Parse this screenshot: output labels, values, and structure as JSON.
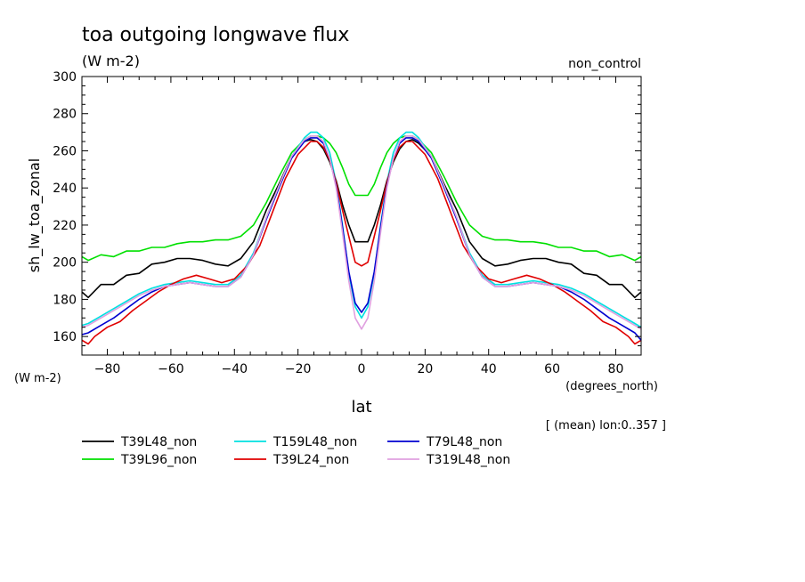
{
  "chart_data": {
    "type": "line",
    "title": "toa outgoing longwave flux",
    "subtitle": "(W m-2)",
    "dataset_label": "non_control",
    "ylabel": "sh_lw_toa_zonal",
    "yunits": "(W m-2)",
    "xlabel": "lat",
    "xunits": "(degrees_north)",
    "note": "[ (mean) lon:0..357 ]",
    "xlim": [
      -88,
      88
    ],
    "ylim": [
      150,
      300
    ],
    "xticks": [
      -80,
      -60,
      -40,
      -20,
      0,
      20,
      40,
      60,
      80
    ],
    "yticks": [
      160,
      180,
      200,
      220,
      240,
      260,
      280,
      300
    ],
    "grid": false,
    "legend_position": "bottom",
    "series": [
      {
        "name": "T39L48_non",
        "color": "#000000",
        "x": [
          -88,
          -86,
          -82,
          -78,
          -74,
          -70,
          -66,
          -62,
          -58,
          -54,
          -50,
          -46,
          -42,
          -38,
          -34,
          -30,
          -26,
          -22,
          -18,
          -16,
          -14,
          -12,
          -10,
          -8,
          -6,
          -4,
          -2,
          0,
          2,
          4,
          6,
          8,
          10,
          12,
          14,
          16,
          18,
          22,
          26,
          30,
          34,
          38,
          42,
          46,
          50,
          54,
          58,
          62,
          66,
          70,
          74,
          78,
          82,
          86,
          88
        ],
        "y": [
          184,
          181,
          188,
          188,
          193,
          194,
          199,
          200,
          202,
          202,
          201,
          199,
          198,
          202,
          211,
          228,
          242,
          257,
          265,
          266,
          265,
          261,
          254,
          244,
          231,
          220,
          211,
          211,
          211,
          220,
          231,
          244,
          254,
          261,
          265,
          266,
          264,
          257,
          242,
          228,
          211,
          202,
          198,
          199,
          201,
          202,
          202,
          200,
          199,
          194,
          193,
          188,
          188,
          181,
          184
        ]
      },
      {
        "name": "T39L96_non",
        "color": "#00e000",
        "x": [
          -88,
          -86,
          -82,
          -78,
          -74,
          -70,
          -66,
          -62,
          -58,
          -54,
          -50,
          -46,
          -42,
          -38,
          -34,
          -30,
          -26,
          -22,
          -18,
          -16,
          -14,
          -12,
          -10,
          -8,
          -6,
          -4,
          -2,
          0,
          2,
          4,
          6,
          8,
          10,
          12,
          14,
          16,
          18,
          22,
          26,
          30,
          34,
          38,
          42,
          46,
          50,
          54,
          58,
          62,
          66,
          70,
          74,
          78,
          82,
          86,
          88
        ],
        "y": [
          203,
          201,
          204,
          203,
          206,
          206,
          208,
          208,
          210,
          211,
          211,
          212,
          212,
          214,
          220,
          232,
          246,
          259,
          266,
          268,
          268,
          267,
          264,
          259,
          251,
          242,
          236,
          236,
          236,
          242,
          251,
          259,
          264,
          267,
          268,
          268,
          266,
          259,
          246,
          232,
          220,
          214,
          212,
          212,
          211,
          211,
          210,
          208,
          208,
          206,
          206,
          203,
          204,
          201,
          203
        ]
      },
      {
        "name": "T159L48_non",
        "color": "#00e0e0",
        "x": [
          -88,
          -86,
          -82,
          -78,
          -74,
          -70,
          -66,
          -62,
          -58,
          -54,
          -50,
          -46,
          -42,
          -38,
          -34,
          -30,
          -26,
          -22,
          -18,
          -16,
          -14,
          -12,
          -10,
          -8,
          -6,
          -4,
          -2,
          0,
          2,
          4,
          6,
          8,
          10,
          12,
          14,
          16,
          18,
          22,
          26,
          30,
          34,
          38,
          42,
          46,
          50,
          54,
          58,
          62,
          66,
          70,
          74,
          78,
          82,
          86,
          88
        ],
        "y": [
          166,
          167,
          171,
          175,
          179,
          183,
          186,
          188,
          189,
          190,
          189,
          188,
          188,
          193,
          205,
          224,
          241,
          257,
          267,
          270,
          270,
          267,
          259,
          243,
          220,
          194,
          176,
          170,
          176,
          194,
          220,
          243,
          259,
          267,
          270,
          270,
          267,
          257,
          241,
          224,
          205,
          193,
          188,
          188,
          189,
          190,
          189,
          188,
          186,
          183,
          179,
          175,
          171,
          167,
          165
        ]
      },
      {
        "name": "T39L24_non",
        "color": "#e00000",
        "x": [
          -88,
          -86,
          -84,
          -80,
          -76,
          -72,
          -68,
          -64,
          -60,
          -56,
          -52,
          -48,
          -44,
          -40,
          -36,
          -32,
          -28,
          -24,
          -20,
          -16,
          -14,
          -12,
          -10,
          -8,
          -6,
          -4,
          -2,
          0,
          2,
          4,
          6,
          8,
          10,
          12,
          14,
          16,
          20,
          24,
          28,
          32,
          36,
          40,
          44,
          48,
          52,
          56,
          60,
          64,
          68,
          72,
          76,
          80,
          84,
          86,
          88
        ],
        "y": [
          158,
          156,
          160,
          165,
          168,
          174,
          179,
          184,
          188,
          191,
          193,
          191,
          189,
          191,
          198,
          209,
          227,
          245,
          258,
          265,
          265,
          262,
          255,
          243,
          228,
          214,
          200,
          198,
          200,
          214,
          228,
          243,
          255,
          262,
          265,
          265,
          258,
          245,
          227,
          209,
          198,
          191,
          189,
          191,
          193,
          191,
          188,
          184,
          179,
          174,
          168,
          165,
          160,
          156,
          158
        ]
      },
      {
        "name": "T79L48_non",
        "color": "#0000d0",
        "x": [
          -88,
          -86,
          -82,
          -78,
          -74,
          -70,
          -66,
          -62,
          -58,
          -54,
          -50,
          -46,
          -42,
          -38,
          -34,
          -30,
          -26,
          -22,
          -18,
          -16,
          -14,
          -12,
          -10,
          -8,
          -6,
          -4,
          -2,
          0,
          2,
          4,
          6,
          8,
          10,
          12,
          14,
          16,
          18,
          22,
          26,
          30,
          34,
          38,
          42,
          46,
          50,
          54,
          58,
          62,
          66,
          70,
          74,
          78,
          82,
          86,
          88
        ],
        "y": [
          161,
          162,
          166,
          170,
          175,
          180,
          184,
          187,
          188,
          189,
          188,
          187,
          187,
          192,
          204,
          223,
          240,
          256,
          265,
          267,
          267,
          264,
          256,
          241,
          219,
          195,
          178,
          173,
          178,
          195,
          219,
          241,
          256,
          264,
          267,
          267,
          265,
          256,
          240,
          223,
          204,
          192,
          187,
          187,
          188,
          189,
          188,
          187,
          184,
          180,
          175,
          170,
          166,
          162,
          158
        ]
      },
      {
        "name": "T319L48_non",
        "color": "#e0a0e0",
        "x": [
          -88,
          -86,
          -82,
          -78,
          -74,
          -70,
          -66,
          -62,
          -58,
          -54,
          -50,
          -46,
          -42,
          -38,
          -34,
          -30,
          -26,
          -22,
          -18,
          -16,
          -14,
          -12,
          -10,
          -8,
          -6,
          -4,
          -2,
          0,
          2,
          4,
          6,
          8,
          10,
          12,
          14,
          16,
          18,
          22,
          26,
          30,
          34,
          38,
          42,
          46,
          50,
          54,
          58,
          62,
          66,
          70,
          74,
          78,
          82,
          86,
          88
        ],
        "y": [
          165,
          166,
          170,
          174,
          178,
          182,
          185,
          187,
          188,
          189,
          188,
          187,
          187,
          192,
          204,
          224,
          241,
          257,
          266,
          268,
          268,
          265,
          256,
          240,
          216,
          190,
          170,
          164,
          170,
          190,
          216,
          240,
          256,
          265,
          268,
          268,
          266,
          257,
          241,
          224,
          204,
          192,
          187,
          187,
          188,
          189,
          188,
          187,
          185,
          182,
          178,
          174,
          170,
          166,
          164
        ]
      }
    ],
    "legend_order": [
      0,
      1,
      2,
      3,
      4,
      5
    ]
  }
}
